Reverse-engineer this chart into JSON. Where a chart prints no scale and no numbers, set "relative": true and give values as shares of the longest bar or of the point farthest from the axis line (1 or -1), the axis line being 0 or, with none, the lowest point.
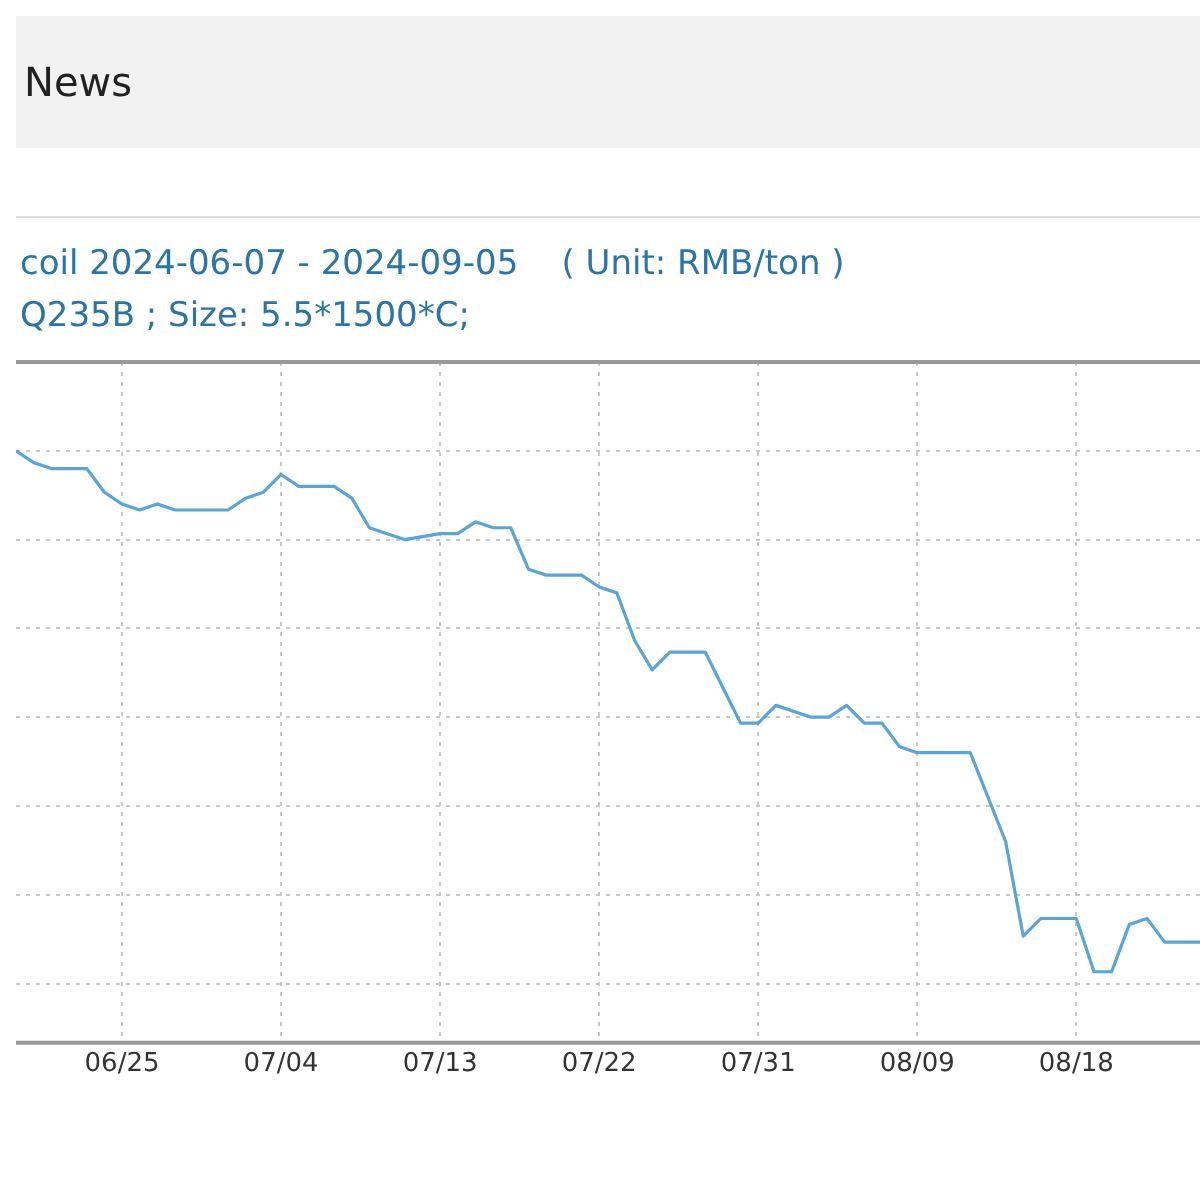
{
  "chart_data": {
    "type": "line",
    "relative": true,
    "title": "coil 2024-06-07 - 2024-09-05    ( Unit: RMB/ton )",
    "subtitle": "Q235B ; Size: 5.5*1500*C;",
    "annotations": [
      "News"
    ],
    "x": [
      "--06-19",
      "--06-20",
      "--06-21",
      "--06-23",
      "--06-24",
      "--06-25",
      "--06-26",
      "--06-27",
      "--06-28",
      "--07-01",
      "--07-02",
      "--07-03",
      "--07-04",
      "--07-05",
      "--07-07",
      "--07-08",
      "--07-09",
      "--07-10",
      "--07-11",
      "--07-13",
      "--07-14",
      "--07-15",
      "--07-16",
      "--07-17",
      "--07-18",
      "--07-19",
      "--07-21",
      "--07-22",
      "--07-23",
      "--07-24",
      "--07-25",
      "--07-26",
      "--07-28",
      "--07-30",
      "--07-31",
      "--08-01",
      "--08-03",
      "--08-04",
      "--08-05",
      "--08-06",
      "--08-07",
      "--08-08",
      "--08-09",
      "--08-12",
      "--08-14",
      "--08-15",
      "--08-16",
      "--08-18",
      "--08-19",
      "--08-20",
      "--08-21",
      "--08-22",
      "--08-23",
      "--08-25"
    ],
    "series": [
      {
        "color": "#5ba4d6",
        "values": [
          1.0,
          0.98,
          0.97,
          0.97,
          0.93,
          0.91,
          0.9,
          0.91,
          0.9,
          0.9,
          0.92,
          0.93,
          0.96,
          0.94,
          0.94,
          0.92,
          0.87,
          0.86,
          0.85,
          0.86,
          0.86,
          0.88,
          0.87,
          0.87,
          0.8,
          0.79,
          0.79,
          0.77,
          0.76,
          0.68,
          0.63,
          0.66,
          0.66,
          0.54,
          0.54,
          0.57,
          0.55,
          0.55,
          0.57,
          0.54,
          0.54,
          0.5,
          0.49,
          0.49,
          0.34,
          0.18,
          0.21,
          0.21,
          0.12,
          0.12,
          0.2,
          0.21,
          0.17,
          0.17
        ]
      }
    ],
    "xlim": [
      "--06-19",
      "--08-25"
    ],
    "xticks": [
      {
        "value": "--06-25",
        "label": "06/25"
      },
      {
        "value": "--07-04",
        "label": "07/04"
      },
      {
        "value": "--07-13",
        "label": "07/13"
      },
      {
        "value": "--07-22",
        "label": "07/22"
      },
      {
        "value": "--07-31",
        "label": "07/31"
      },
      {
        "value": "--08-09",
        "label": "08/09"
      },
      {
        "value": "--08-18",
        "label": "08/18"
      }
    ],
    "grid": true,
    "legend": false,
    "marker": "none",
    "line_style": "solid"
  }
}
